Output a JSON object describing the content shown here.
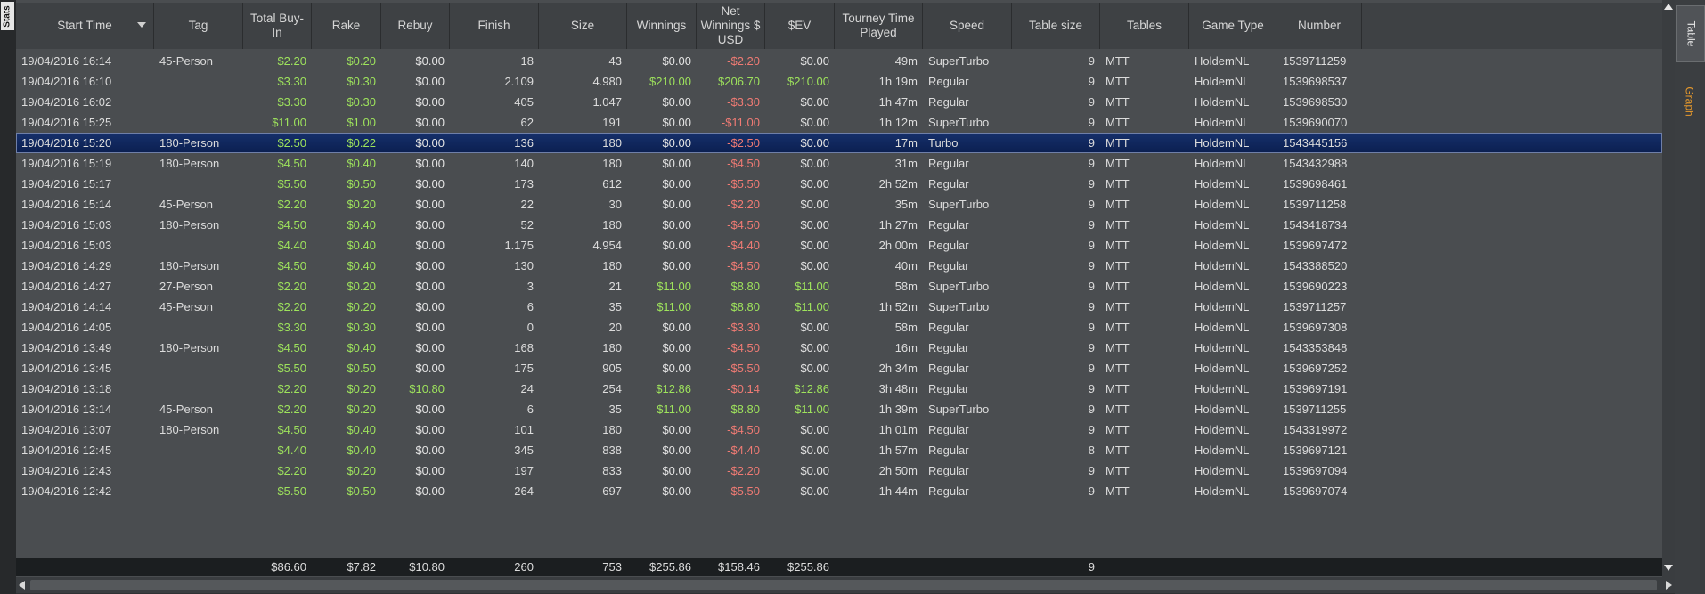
{
  "left_tab": {
    "label": "Stats"
  },
  "right_tabs": [
    {
      "label": "Table"
    },
    {
      "label": "Graph"
    }
  ],
  "colors": {
    "positive": "#9ee35c",
    "negative": "#f07b74",
    "neutral": "#e4e4e4",
    "selection": "#0b1f50",
    "accent_tab": "#e89a2c"
  },
  "columns": [
    {
      "key": "start",
      "label": "Start Time"
    },
    {
      "key": "tag",
      "label": "Tag"
    },
    {
      "key": "buyin",
      "label": "Total Buy-In"
    },
    {
      "key": "rake",
      "label": "Rake"
    },
    {
      "key": "rebuy",
      "label": "Rebuy"
    },
    {
      "key": "finish",
      "label": "Finish"
    },
    {
      "key": "size",
      "label": "Size"
    },
    {
      "key": "winnings",
      "label": "Winnings"
    },
    {
      "key": "net",
      "label": "Net Winnings $ USD"
    },
    {
      "key": "ev",
      "label": "$EV"
    },
    {
      "key": "time",
      "label": "Tourney Time Played"
    },
    {
      "key": "speed",
      "label": "Speed"
    },
    {
      "key": "tablesize",
      "label": "Table size"
    },
    {
      "key": "tables",
      "label": "Tables"
    },
    {
      "key": "gametype",
      "label": "Game Type"
    },
    {
      "key": "number",
      "label": "Number"
    }
  ],
  "rows": [
    {
      "start": "19/04/2016 16:14",
      "tag": "45-Person",
      "buyin": "$2.20",
      "rake": "$0.20",
      "rebuy": "$0.00",
      "finish": "18",
      "size": "43",
      "winnings": "$0.00",
      "net": "-$2.20",
      "ev": "$0.00",
      "time": "49m",
      "speed": "SuperTurbo",
      "tablesize": "9",
      "tables": "MTT",
      "gametype": "HoldemNL",
      "number": "1539711259"
    },
    {
      "start": "19/04/2016 16:10",
      "tag": "",
      "buyin": "$3.30",
      "rake": "$0.30",
      "rebuy": "$0.00",
      "finish": "2.109",
      "size": "4.980",
      "winnings": "$210.00",
      "net": "$206.70",
      "ev": "$210.00",
      "time": "1h 19m",
      "speed": "Regular",
      "tablesize": "9",
      "tables": "MTT",
      "gametype": "HoldemNL",
      "number": "1539698537"
    },
    {
      "start": "19/04/2016 16:02",
      "tag": "",
      "buyin": "$3.30",
      "rake": "$0.30",
      "rebuy": "$0.00",
      "finish": "405",
      "size": "1.047",
      "winnings": "$0.00",
      "net": "-$3.30",
      "ev": "$0.00",
      "time": "1h 47m",
      "speed": "Regular",
      "tablesize": "9",
      "tables": "MTT",
      "gametype": "HoldemNL",
      "number": "1539698530"
    },
    {
      "start": "19/04/2016 15:25",
      "tag": "",
      "buyin": "$11.00",
      "rake": "$1.00",
      "rebuy": "$0.00",
      "finish": "62",
      "size": "191",
      "winnings": "$0.00",
      "net": "-$11.00",
      "ev": "$0.00",
      "time": "1h 12m",
      "speed": "SuperTurbo",
      "tablesize": "9",
      "tables": "MTT",
      "gametype": "HoldemNL",
      "number": "1539690070"
    },
    {
      "start": "19/04/2016 15:20",
      "tag": "180-Person",
      "buyin": "$2.50",
      "rake": "$0.22",
      "rebuy": "$0.00",
      "finish": "136",
      "size": "180",
      "winnings": "$0.00",
      "net": "-$2.50",
      "ev": "$0.00",
      "time": "17m",
      "speed": "Turbo",
      "tablesize": "9",
      "tables": "MTT",
      "gametype": "HoldemNL",
      "number": "1543445156",
      "selected": true
    },
    {
      "start": "19/04/2016 15:19",
      "tag": "180-Person",
      "buyin": "$4.50",
      "rake": "$0.40",
      "rebuy": "$0.00",
      "finish": "140",
      "size": "180",
      "winnings": "$0.00",
      "net": "-$4.50",
      "ev": "$0.00",
      "time": "31m",
      "speed": "Regular",
      "tablesize": "9",
      "tables": "MTT",
      "gametype": "HoldemNL",
      "number": "1543432988"
    },
    {
      "start": "19/04/2016 15:17",
      "tag": "",
      "buyin": "$5.50",
      "rake": "$0.50",
      "rebuy": "$0.00",
      "finish": "173",
      "size": "612",
      "winnings": "$0.00",
      "net": "-$5.50",
      "ev": "$0.00",
      "time": "2h 52m",
      "speed": "Regular",
      "tablesize": "9",
      "tables": "MTT",
      "gametype": "HoldemNL",
      "number": "1539698461"
    },
    {
      "start": "19/04/2016 15:14",
      "tag": "45-Person",
      "buyin": "$2.20",
      "rake": "$0.20",
      "rebuy": "$0.00",
      "finish": "22",
      "size": "30",
      "winnings": "$0.00",
      "net": "-$2.20",
      "ev": "$0.00",
      "time": "35m",
      "speed": "SuperTurbo",
      "tablesize": "9",
      "tables": "MTT",
      "gametype": "HoldemNL",
      "number": "1539711258"
    },
    {
      "start": "19/04/2016 15:03",
      "tag": "180-Person",
      "buyin": "$4.50",
      "rake": "$0.40",
      "rebuy": "$0.00",
      "finish": "52",
      "size": "180",
      "winnings": "$0.00",
      "net": "-$4.50",
      "ev": "$0.00",
      "time": "1h 27m",
      "speed": "Regular",
      "tablesize": "9",
      "tables": "MTT",
      "gametype": "HoldemNL",
      "number": "1543418734"
    },
    {
      "start": "19/04/2016 15:03",
      "tag": "",
      "buyin": "$4.40",
      "rake": "$0.40",
      "rebuy": "$0.00",
      "finish": "1.175",
      "size": "4.954",
      "winnings": "$0.00",
      "net": "-$4.40",
      "ev": "$0.00",
      "time": "2h 00m",
      "speed": "Regular",
      "tablesize": "9",
      "tables": "MTT",
      "gametype": "HoldemNL",
      "number": "1539697472"
    },
    {
      "start": "19/04/2016 14:29",
      "tag": "180-Person",
      "buyin": "$4.50",
      "rake": "$0.40",
      "rebuy": "$0.00",
      "finish": "130",
      "size": "180",
      "winnings": "$0.00",
      "net": "-$4.50",
      "ev": "$0.00",
      "time": "40m",
      "speed": "Regular",
      "tablesize": "9",
      "tables": "MTT",
      "gametype": "HoldemNL",
      "number": "1543388520"
    },
    {
      "start": "19/04/2016 14:27",
      "tag": "27-Person",
      "buyin": "$2.20",
      "rake": "$0.20",
      "rebuy": "$0.00",
      "finish": "3",
      "size": "21",
      "winnings": "$11.00",
      "net": "$8.80",
      "ev": "$11.00",
      "time": "58m",
      "speed": "SuperTurbo",
      "tablesize": "9",
      "tables": "MTT",
      "gametype": "HoldemNL",
      "number": "1539690223"
    },
    {
      "start": "19/04/2016 14:14",
      "tag": "45-Person",
      "buyin": "$2.20",
      "rake": "$0.20",
      "rebuy": "$0.00",
      "finish": "6",
      "size": "35",
      "winnings": "$11.00",
      "net": "$8.80",
      "ev": "$11.00",
      "time": "1h 52m",
      "speed": "SuperTurbo",
      "tablesize": "9",
      "tables": "MTT",
      "gametype": "HoldemNL",
      "number": "1539711257"
    },
    {
      "start": "19/04/2016 14:05",
      "tag": "",
      "buyin": "$3.30",
      "rake": "$0.30",
      "rebuy": "$0.00",
      "finish": "0",
      "size": "20",
      "winnings": "$0.00",
      "net": "-$3.30",
      "ev": "$0.00",
      "time": "58m",
      "speed": "Regular",
      "tablesize": "9",
      "tables": "MTT",
      "gametype": "HoldemNL",
      "number": "1539697308"
    },
    {
      "start": "19/04/2016 13:49",
      "tag": "180-Person",
      "buyin": "$4.50",
      "rake": "$0.40",
      "rebuy": "$0.00",
      "finish": "168",
      "size": "180",
      "winnings": "$0.00",
      "net": "-$4.50",
      "ev": "$0.00",
      "time": "16m",
      "speed": "Regular",
      "tablesize": "9",
      "tables": "MTT",
      "gametype": "HoldemNL",
      "number": "1543353848"
    },
    {
      "start": "19/04/2016 13:45",
      "tag": "",
      "buyin": "$5.50",
      "rake": "$0.50",
      "rebuy": "$0.00",
      "finish": "175",
      "size": "905",
      "winnings": "$0.00",
      "net": "-$5.50",
      "ev": "$0.00",
      "time": "2h 34m",
      "speed": "Regular",
      "tablesize": "9",
      "tables": "MTT",
      "gametype": "HoldemNL",
      "number": "1539697252"
    },
    {
      "start": "19/04/2016 13:18",
      "tag": "",
      "buyin": "$2.20",
      "rake": "$0.20",
      "rebuy": "$10.80",
      "finish": "24",
      "size": "254",
      "winnings": "$12.86",
      "net": "-$0.14",
      "ev": "$12.86",
      "time": "3h 48m",
      "speed": "Regular",
      "tablesize": "9",
      "tables": "MTT",
      "gametype": "HoldemNL",
      "number": "1539697191"
    },
    {
      "start": "19/04/2016 13:14",
      "tag": "45-Person",
      "buyin": "$2.20",
      "rake": "$0.20",
      "rebuy": "$0.00",
      "finish": "6",
      "size": "35",
      "winnings": "$11.00",
      "net": "$8.80",
      "ev": "$11.00",
      "time": "1h 39m",
      "speed": "SuperTurbo",
      "tablesize": "9",
      "tables": "MTT",
      "gametype": "HoldemNL",
      "number": "1539711255"
    },
    {
      "start": "19/04/2016 13:07",
      "tag": "180-Person",
      "buyin": "$4.50",
      "rake": "$0.40",
      "rebuy": "$0.00",
      "finish": "101",
      "size": "180",
      "winnings": "$0.00",
      "net": "-$4.50",
      "ev": "$0.00",
      "time": "1h 01m",
      "speed": "Regular",
      "tablesize": "9",
      "tables": "MTT",
      "gametype": "HoldemNL",
      "number": "1543319972"
    },
    {
      "start": "19/04/2016 12:45",
      "tag": "",
      "buyin": "$4.40",
      "rake": "$0.40",
      "rebuy": "$0.00",
      "finish": "345",
      "size": "838",
      "winnings": "$0.00",
      "net": "-$4.40",
      "ev": "$0.00",
      "time": "1h 57m",
      "speed": "Regular",
      "tablesize": "8",
      "tables": "MTT",
      "gametype": "HoldemNL",
      "number": "1539697121"
    },
    {
      "start": "19/04/2016 12:43",
      "tag": "",
      "buyin": "$2.20",
      "rake": "$0.20",
      "rebuy": "$0.00",
      "finish": "197",
      "size": "833",
      "winnings": "$0.00",
      "net": "-$2.20",
      "ev": "$0.00",
      "time": "2h 50m",
      "speed": "Regular",
      "tablesize": "9",
      "tables": "MTT",
      "gametype": "HoldemNL",
      "number": "1539697094"
    },
    {
      "start": "19/04/2016 12:42",
      "tag": "",
      "buyin": "$5.50",
      "rake": "$0.50",
      "rebuy": "$0.00",
      "finish": "264",
      "size": "697",
      "winnings": "$0.00",
      "net": "-$5.50",
      "ev": "$0.00",
      "time": "1h 44m",
      "speed": "Regular",
      "tablesize": "9",
      "tables": "MTT",
      "gametype": "HoldemNL",
      "number": "1539697074"
    }
  ],
  "totals": {
    "start": "",
    "tag": "",
    "buyin": "$86.60",
    "rake": "$7.82",
    "rebuy": "$10.80",
    "finish": "260",
    "size": "753",
    "winnings": "$255.86",
    "net": "$158.46",
    "ev": "$255.86",
    "time": "",
    "speed": "",
    "tablesize": "9",
    "tables": "",
    "gametype": "",
    "number": ""
  }
}
